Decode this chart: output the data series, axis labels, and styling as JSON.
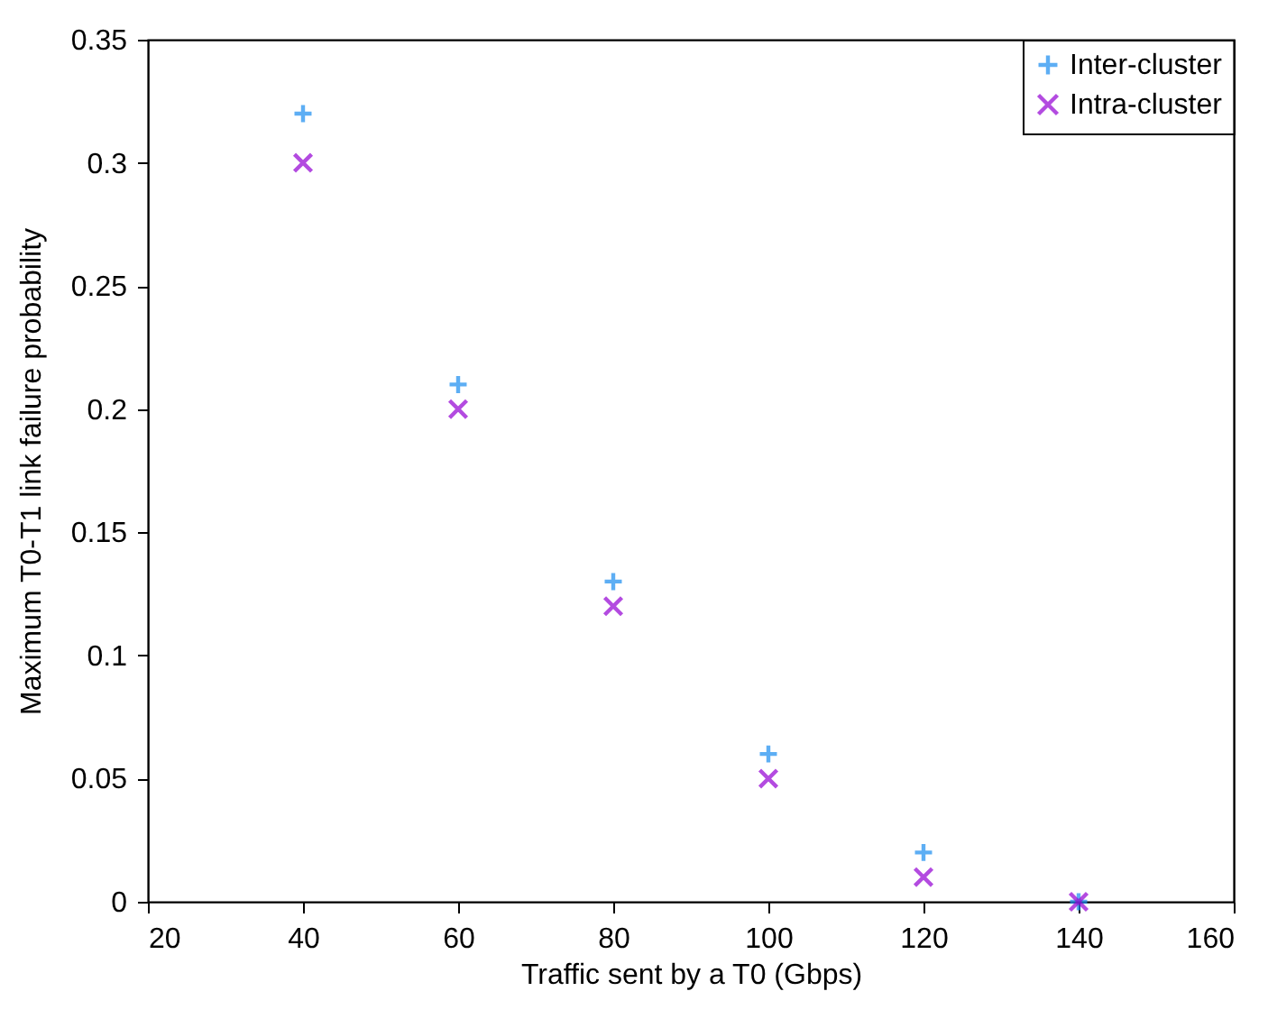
{
  "chart_data": {
    "type": "scatter",
    "xlabel": "Traffic sent by a T0 (Gbps)",
    "ylabel": "Maximum T0-T1 link failure probability",
    "x": [
      40,
      60,
      80,
      100,
      120,
      140
    ],
    "series": [
      {
        "name": "Inter-cluster",
        "color": "#1a8cf0",
        "marker": "cross",
        "values": [
          0.32,
          0.21,
          0.13,
          0.06,
          0.02,
          0.0
        ]
      },
      {
        "name": "Intra-cluster",
        "color": "#9400d3",
        "marker": "x",
        "values": [
          0.3,
          0.2,
          0.12,
          0.05,
          0.01,
          0.0
        ]
      }
    ],
    "xlim": [
      20,
      160
    ],
    "xticks": [
      20,
      40,
      60,
      80,
      100,
      120,
      140,
      160
    ],
    "ylim": [
      0,
      0.35
    ],
    "yticks": [
      0,
      0.05,
      0.1,
      0.15,
      0.2,
      0.25,
      0.3,
      0.35
    ],
    "grid": false,
    "legend": "top right"
  }
}
